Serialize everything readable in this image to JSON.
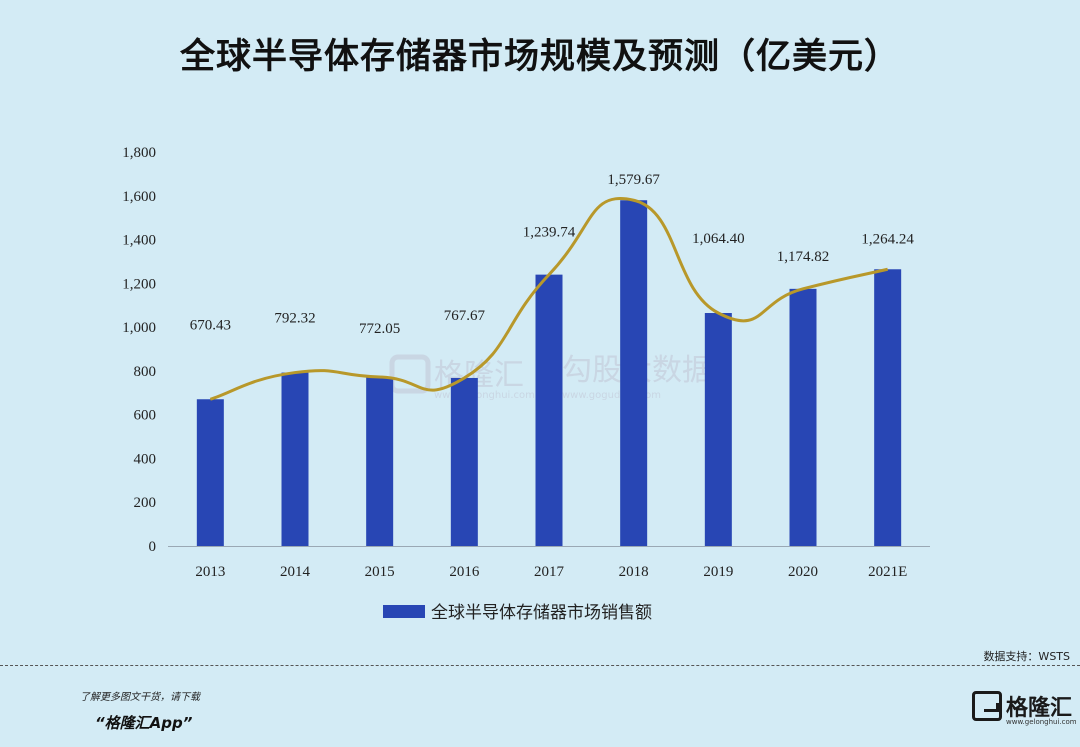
{
  "title": "全球半导体存储器市场规模及预测（亿美元）",
  "chart_data": {
    "type": "bar",
    "categories": [
      "2013",
      "2014",
      "2015",
      "2016",
      "2017",
      "2018",
      "2019",
      "2020",
      "2021E"
    ],
    "series": [
      {
        "name": "全球半导体存储器市场销售额",
        "values": [
          670.43,
          792.32,
          772.05,
          767.67,
          1239.74,
          1579.67,
          1064.4,
          1174.82,
          1264.24
        ],
        "labels": [
          "670.43",
          "792.32",
          "772.05",
          "767.67",
          "1,239.74",
          "1,579.67",
          "1,064.40",
          "1,174.82",
          "1,264.24"
        ],
        "color": "#2846b4"
      }
    ],
    "trendline": {
      "type": "smooth-curve",
      "color": "#b8982a"
    },
    "ylim": [
      0,
      1800
    ],
    "yticks": [
      0,
      200,
      400,
      600,
      800,
      1000,
      1200,
      1400,
      1600,
      1800
    ],
    "ytick_labels": [
      "0",
      "200",
      "400",
      "600",
      "800",
      "1,000",
      "1,200",
      "1,400",
      "1,600",
      "1,800"
    ],
    "xlabel": "",
    "ylabel": "",
    "legend_position": "bottom",
    "grid": false
  },
  "watermark": {
    "brand": "格隆汇",
    "brand_sub": "www.gelonghui.com",
    "data": "勾股大数据",
    "data_sub": "www.gogudata.com"
  },
  "source": "数据支持：WSTS",
  "footer": {
    "line1": "了解更多图文干货，请下载",
    "line2": "“格隆汇App”"
  },
  "logo": {
    "text": "格隆汇",
    "sub": "www.gelonghui.com",
    "icon": "gelonghui-logo-icon"
  }
}
